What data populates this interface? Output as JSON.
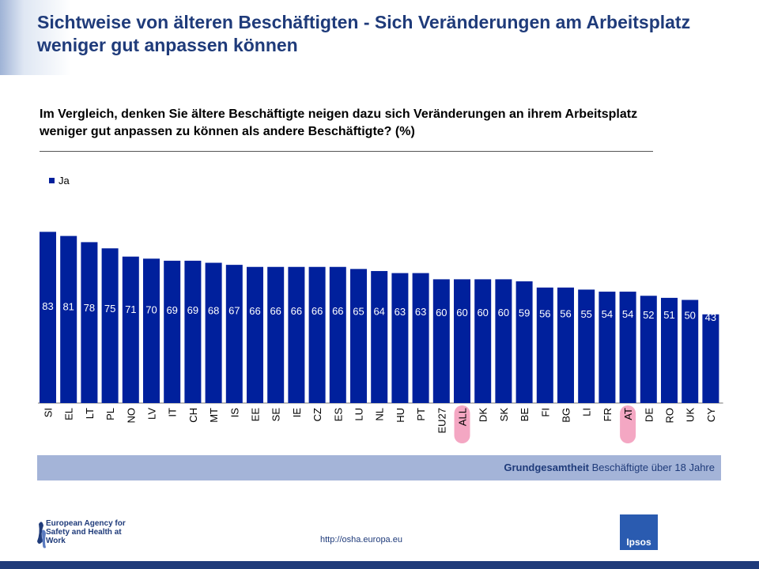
{
  "header": {
    "title": "Sichtweise von älteren Beschäftigten - Sich Veränderungen am Arbeitsplatz weniger gut anpassen können"
  },
  "question": "Im Vergleich, denken Sie ältere Beschäftigte neigen dazu sich Veränderungen an ihrem Arbeitsplatz weniger gut anpassen zu können  als andere Beschäftigte? (%)",
  "footer": {
    "base_label": "Grundgesamtheit",
    "base_text": "Beschäftigte über 18 Jahre",
    "url": "http://osha.europa.eu",
    "agency_name": "European Agency for Safety and Health at Work",
    "ipsos": "Ipsos"
  },
  "colors": {
    "bar": "#00209c",
    "highlight": "#f4a7c3",
    "title": "#1f3b7a"
  },
  "chart_data": {
    "type": "bar",
    "title": "",
    "xlabel": "",
    "ylabel": "",
    "ylim": [
      0,
      100
    ],
    "legend": "top-left",
    "highlighted": [
      "ALL",
      "AT"
    ],
    "categories": [
      "SI",
      "EL",
      "LT",
      "PL",
      "NO",
      "LV",
      "IT",
      "CH",
      "MT",
      "IS",
      "EE",
      "SE",
      "IE",
      "CZ",
      "ES",
      "LU",
      "NL",
      "HU",
      "PT",
      "EU27",
      "ALL",
      "DK",
      "SK",
      "BE",
      "FI",
      "BG",
      "LI",
      "FR",
      "AT",
      "DE",
      "RO",
      "UK",
      "CY"
    ],
    "series": [
      {
        "name": "Ja",
        "values": [
          83,
          81,
          78,
          75,
          71,
          70,
          69,
          69,
          68,
          67,
          66,
          66,
          66,
          66,
          66,
          65,
          64,
          63,
          63,
          60,
          60,
          60,
          60,
          59,
          56,
          56,
          55,
          54,
          54,
          52,
          51,
          50,
          43
        ]
      }
    ]
  }
}
